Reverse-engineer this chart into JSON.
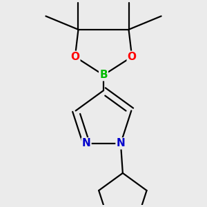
{
  "background_color": "#ebebeb",
  "bond_color": "#000000",
  "atom_colors": {
    "B": "#00bb00",
    "O": "#ff0000",
    "N": "#0000cc",
    "C": "#000000"
  },
  "bond_width": 1.6,
  "figsize": [
    3.0,
    3.0
  ],
  "dpi": 100,
  "xlim": [
    -1.8,
    1.8
  ],
  "ylim": [
    -2.6,
    2.4
  ]
}
